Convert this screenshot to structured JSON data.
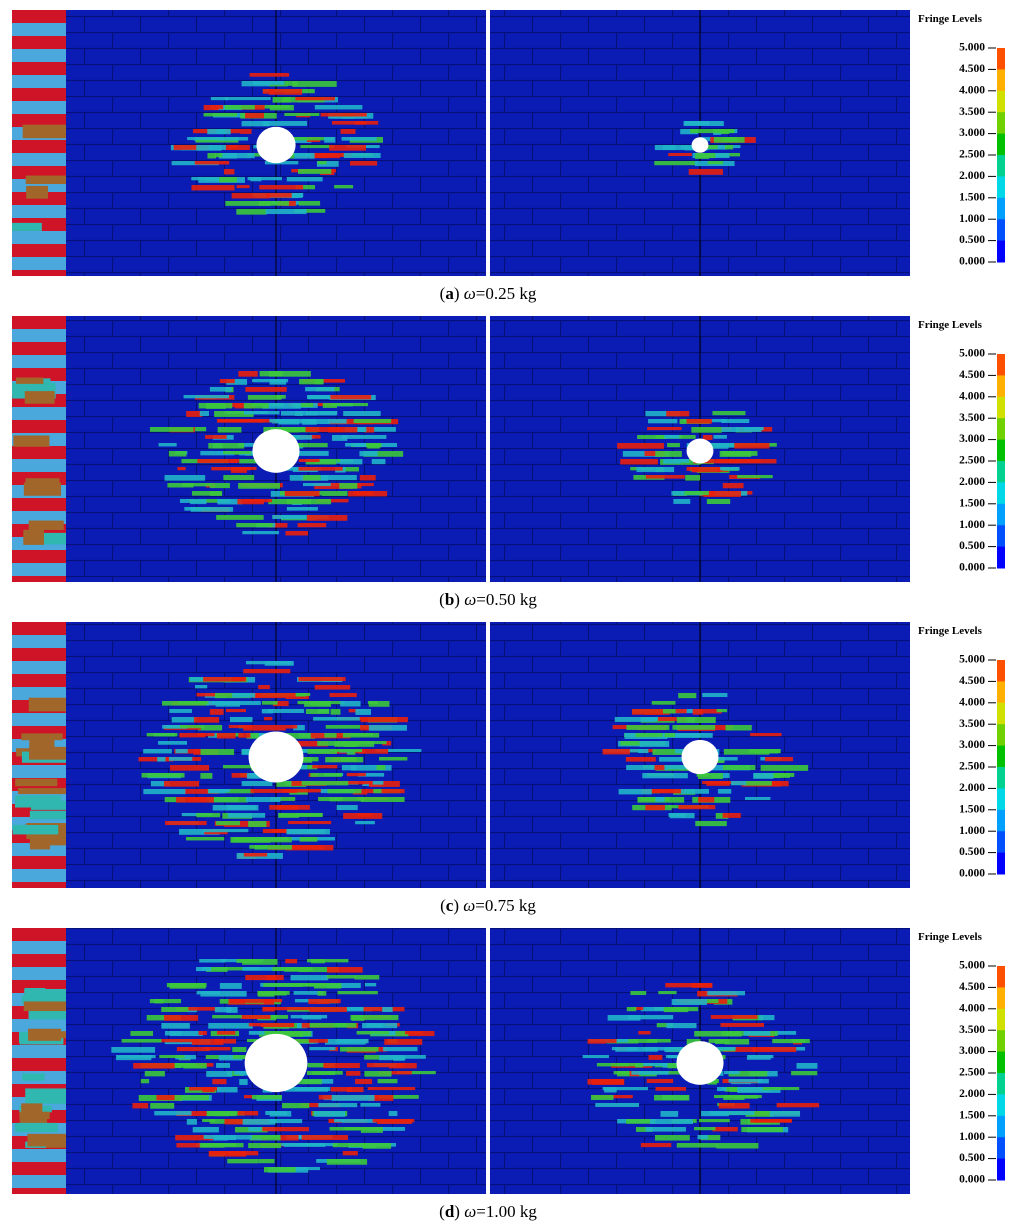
{
  "panels": [
    {
      "caption": {
        "parts": [
          "(",
          "a",
          ") ",
          "ω",
          "=0.25 kg"
        ]
      }
    },
    {
      "caption": {
        "parts": [
          "(",
          "b",
          ") ",
          "ω",
          "=0.50 kg"
        ]
      }
    },
    {
      "caption": {
        "parts": [
          "(",
          "c",
          ") ",
          "ω",
          "=0.75 kg"
        ]
      }
    },
    {
      "caption": {
        "parts": [
          "(",
          "d",
          ") ",
          "ω",
          "=1.00 kg"
        ]
      }
    }
  ],
  "legend": {
    "title": "Fringe Levels",
    "levels": [
      "5.000",
      "4.500",
      "4.000",
      "3.500",
      "3.000",
      "2.500",
      "2.000",
      "1.500",
      "1.000",
      "0.500",
      "0.000"
    ]
  }
}
